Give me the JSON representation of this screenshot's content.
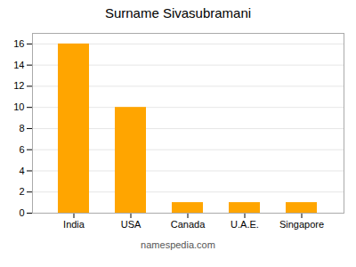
{
  "chart_data": {
    "type": "bar",
    "title": "Surname Sivasubramani",
    "categories": [
      "India",
      "USA",
      "Canada",
      "U.A.E.",
      "Singapore"
    ],
    "values": [
      16,
      10,
      1,
      1,
      1
    ],
    "color": "#FFA500",
    "ylim": [
      0,
      17
    ],
    "yticks": [
      0,
      2,
      4,
      6,
      8,
      10,
      12,
      14,
      16
    ],
    "grid": true,
    "caption": "namespedia.com"
  }
}
